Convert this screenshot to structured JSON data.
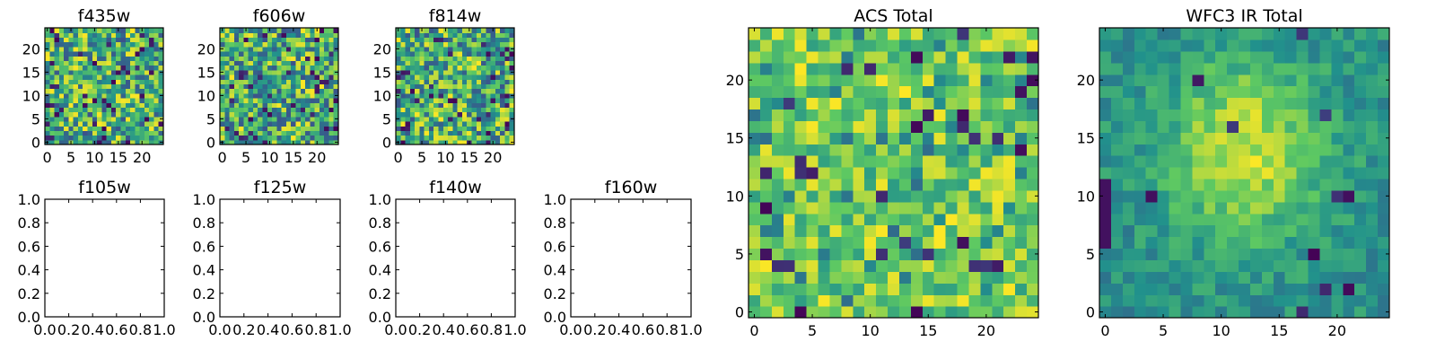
{
  "figure": {
    "width": 1600,
    "height": 400
  },
  "chart_data": [
    {
      "type": "heatmap",
      "title": "f435w",
      "grid_size": 25,
      "seed": 11,
      "mode": "noise",
      "xlim": [
        -0.5,
        24.5
      ],
      "ylim": [
        -0.5,
        24.5
      ],
      "xticks": [
        0,
        5,
        10,
        15,
        20
      ],
      "yticks": [
        0,
        5,
        10,
        15,
        20
      ]
    },
    {
      "type": "heatmap",
      "title": "f606w",
      "grid_size": 25,
      "seed": 23,
      "mode": "noise",
      "xlim": [
        -0.5,
        24.5
      ],
      "ylim": [
        -0.5,
        24.5
      ],
      "xticks": [
        0,
        5,
        10,
        15,
        20
      ],
      "yticks": [
        0,
        5,
        10,
        15,
        20
      ]
    },
    {
      "type": "heatmap",
      "title": "f814w",
      "grid_size": 25,
      "seed": 37,
      "mode": "noise",
      "xlim": [
        -0.5,
        24.5
      ],
      "ylim": [
        -0.5,
        24.5
      ],
      "xticks": [
        0,
        5,
        10,
        15,
        20
      ],
      "yticks": [
        0,
        5,
        10,
        15,
        20
      ]
    },
    {
      "type": "empty",
      "title": "f105w",
      "xlim": [
        0,
        1
      ],
      "ylim": [
        0,
        1
      ],
      "xticks": [
        "0.0",
        "0.2",
        "0.4",
        "0.6",
        "0.8",
        "1.0"
      ],
      "yticks": [
        "0.0",
        "0.2",
        "0.4",
        "0.6",
        "0.8",
        "1.0"
      ]
    },
    {
      "type": "empty",
      "title": "f125w",
      "xlim": [
        0,
        1
      ],
      "ylim": [
        0,
        1
      ],
      "xticks": [
        "0.0",
        "0.2",
        "0.4",
        "0.6",
        "0.8",
        "1.0"
      ],
      "yticks": [
        "0.0",
        "0.2",
        "0.4",
        "0.6",
        "0.8",
        "1.0"
      ]
    },
    {
      "type": "empty",
      "title": "f140w",
      "xlim": [
        0,
        1
      ],
      "ylim": [
        0,
        1
      ],
      "xticks": [
        "0.0",
        "0.2",
        "0.4",
        "0.6",
        "0.8",
        "1.0"
      ],
      "yticks": [
        "0.0",
        "0.2",
        "0.4",
        "0.6",
        "0.8",
        "1.0"
      ]
    },
    {
      "type": "empty",
      "title": "f160w",
      "xlim": [
        0,
        1
      ],
      "ylim": [
        0,
        1
      ],
      "xticks": [
        "0.0",
        "0.2",
        "0.4",
        "0.6",
        "0.8",
        "1.0"
      ],
      "yticks": [
        "0.0",
        "0.2",
        "0.4",
        "0.6",
        "0.8",
        "1.0"
      ]
    },
    {
      "type": "heatmap",
      "title": "ACS Total",
      "grid_size": 25,
      "seed": 101,
      "mode": "acs",
      "xlim": [
        -0.5,
        24.5
      ],
      "ylim": [
        -0.5,
        24.5
      ],
      "xticks": [
        0,
        5,
        10,
        15,
        20
      ],
      "yticks": [
        0,
        5,
        10,
        15,
        20
      ]
    },
    {
      "type": "heatmap",
      "title": "WFC3 IR Total",
      "grid_size": 25,
      "seed": 202,
      "mode": "wfc3",
      "xlim": [
        -0.5,
        24.5
      ],
      "ylim": [
        -0.5,
        24.5
      ],
      "xticks": [
        0,
        5,
        10,
        15,
        20
      ],
      "yticks": [
        0,
        5,
        10,
        15,
        20
      ]
    }
  ],
  "colormap": {
    "name": "viridis",
    "stops": [
      "#440154",
      "#3b528b",
      "#21918c",
      "#5ec962",
      "#fde725"
    ]
  }
}
